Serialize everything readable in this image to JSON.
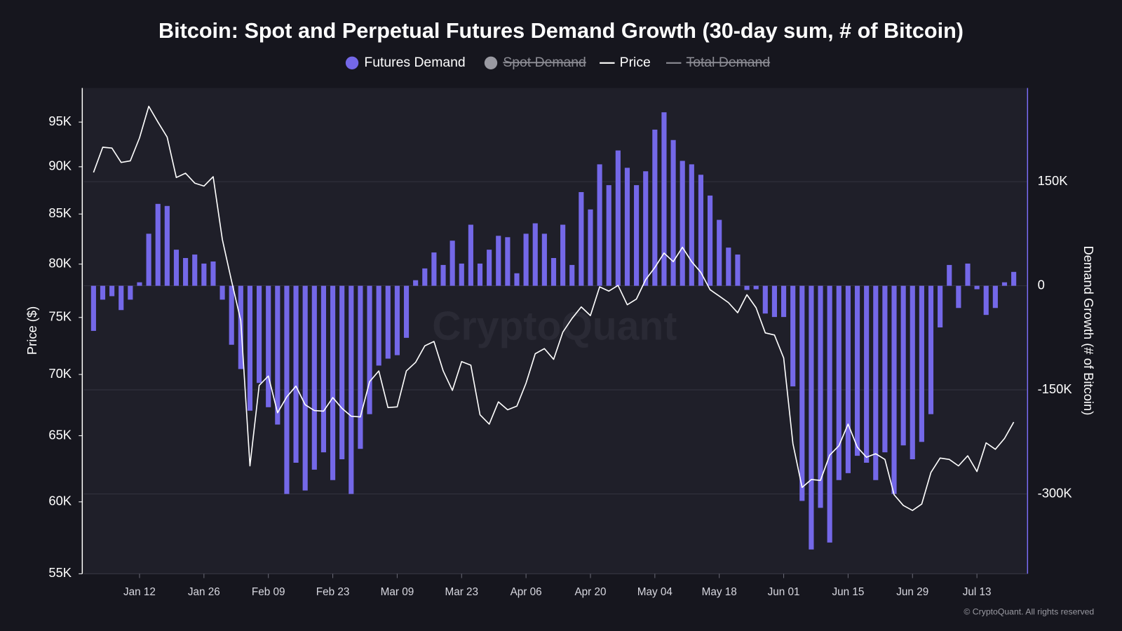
{
  "chart_data": {
    "type": "combo",
    "title": "Bitcoin: Spot and Perpetual Futures Demand Growth (30-day sum, # of Bitcoin)",
    "ylabel": "Price ($)",
    "y2label": "Demand Growth (# of Bitcoin)",
    "watermark": "CryptoQuant",
    "footer": "© CryptoQuant. All rights reserved",
    "log_y": true,
    "grid": true,
    "categories": [
      null,
      null,
      null,
      null,
      null,
      "Jan 12",
      null,
      null,
      null,
      null,
      null,
      null,
      "Jan 26",
      null,
      null,
      null,
      null,
      null,
      null,
      "Feb 09",
      null,
      null,
      null,
      null,
      null,
      null,
      "Feb 23",
      null,
      null,
      null,
      null,
      null,
      null,
      "Mar 09",
      null,
      null,
      null,
      null,
      null,
      null,
      "Mar 23",
      null,
      null,
      null,
      null,
      null,
      null,
      "Apr 06",
      null,
      null,
      null,
      null,
      null,
      null,
      "Apr 20",
      null,
      null,
      null,
      null,
      null,
      null,
      "May 04",
      null,
      null,
      null,
      null,
      null,
      null,
      "May 18",
      null,
      null,
      null,
      null,
      null,
      null,
      "Jun 01",
      null,
      null,
      null,
      null,
      null,
      null,
      "Jun 15",
      null,
      null,
      null,
      null,
      null,
      null,
      "Jun 29",
      null,
      null,
      null,
      null,
      null,
      null,
      "Jul 13",
      null,
      null,
      null,
      null
    ],
    "ylim": [
      55000,
      99000
    ],
    "yticks": [
      {
        "value": 55000,
        "label": "55K"
      },
      {
        "value": 60000,
        "label": "60K"
      },
      {
        "value": 65000,
        "label": "65K"
      },
      {
        "value": 70000,
        "label": "70K"
      },
      {
        "value": 75000,
        "label": "75K"
      },
      {
        "value": 80000,
        "label": "80K"
      },
      {
        "value": 85000,
        "label": "85K"
      },
      {
        "value": 90000,
        "label": "90K"
      },
      {
        "value": 95000,
        "label": "95K"
      }
    ],
    "y2lim": [
      -415000,
      285000
    ],
    "y2ticks": [
      {
        "value": -300000,
        "label": "-300K"
      },
      {
        "value": -150000,
        "label": "-150K"
      },
      0,
      {
        "value": 150000,
        "label": "150K"
      }
    ],
    "series": [
      {
        "name": "Futures Demand",
        "type": "bar",
        "color": "#7468e8",
        "axis": "y2",
        "visible": true,
        "values": [
          -65000,
          -20000,
          -15000,
          -35000,
          -20000,
          5000,
          75000,
          118000,
          115000,
          52000,
          40000,
          45000,
          32000,
          35000,
          -20000,
          -85000,
          -120000,
          -180000,
          -140000,
          -175000,
          -200000,
          -300000,
          -255000,
          -295000,
          -265000,
          -240000,
          -280000,
          -250000,
          -300000,
          -235000,
          -185000,
          -115000,
          -105000,
          -100000,
          -75000,
          8000,
          25000,
          48000,
          30000,
          65000,
          32000,
          88000,
          32000,
          52000,
          72000,
          70000,
          18000,
          75000,
          90000,
          75000,
          40000,
          88000,
          30000,
          135000,
          110000,
          175000,
          145000,
          195000,
          170000,
          145000,
          165000,
          225000,
          250000,
          210000,
          180000,
          175000,
          160000,
          130000,
          95000,
          55000,
          45000,
          -6000,
          -5000,
          -40000,
          -45000,
          -45000,
          -145000,
          -310000,
          -380000,
          -320000,
          -370000,
          -280000,
          -270000,
          -245000,
          -255000,
          -280000,
          -240000,
          -300000,
          -230000,
          -250000,
          -225000,
          -185000,
          -60000,
          30000,
          -32000,
          32000,
          -5000,
          -42000,
          -32000,
          5000,
          20000
        ]
      },
      {
        "name": "Spot Demand",
        "type": "bar",
        "color": "#9a9aa2",
        "axis": "y2",
        "visible": false
      },
      {
        "name": "Price",
        "type": "line",
        "color": "#ffffff",
        "visible": true,
        "values": [
          89390,
          92150,
          92060,
          90480,
          90640,
          93200,
          96830,
          95000,
          93280,
          88840,
          89300,
          88230,
          87920,
          88920,
          82430,
          78380,
          74710,
          62670,
          69080,
          69870,
          66830,
          68130,
          69020,
          67480,
          67010,
          66960,
          68070,
          67190,
          66550,
          66490,
          69390,
          70300,
          67250,
          67310,
          70300,
          71030,
          72470,
          72850,
          70300,
          68660,
          71100,
          70790,
          66670,
          65920,
          67720,
          67070,
          67370,
          69260,
          71780,
          72220,
          71290,
          73680,
          74910,
          75960,
          75170,
          77830,
          77430,
          77970,
          76160,
          76690,
          78510,
          79680,
          81080,
          80240,
          81650,
          80240,
          79200,
          77560,
          76960,
          76360,
          75430,
          77090,
          75890,
          73610,
          73420,
          71410,
          64380,
          61060,
          61640,
          61580,
          63490,
          64220,
          65920,
          64100,
          63330,
          63600,
          63160,
          60520,
          59740,
          59380,
          59840,
          62180,
          63270,
          63160,
          62670,
          63440,
          62240,
          64440,
          63940,
          64780,
          66080
        ]
      },
      {
        "name": "Total Demand",
        "type": "line",
        "color": "#8c8c94",
        "visible": false
      }
    ]
  }
}
